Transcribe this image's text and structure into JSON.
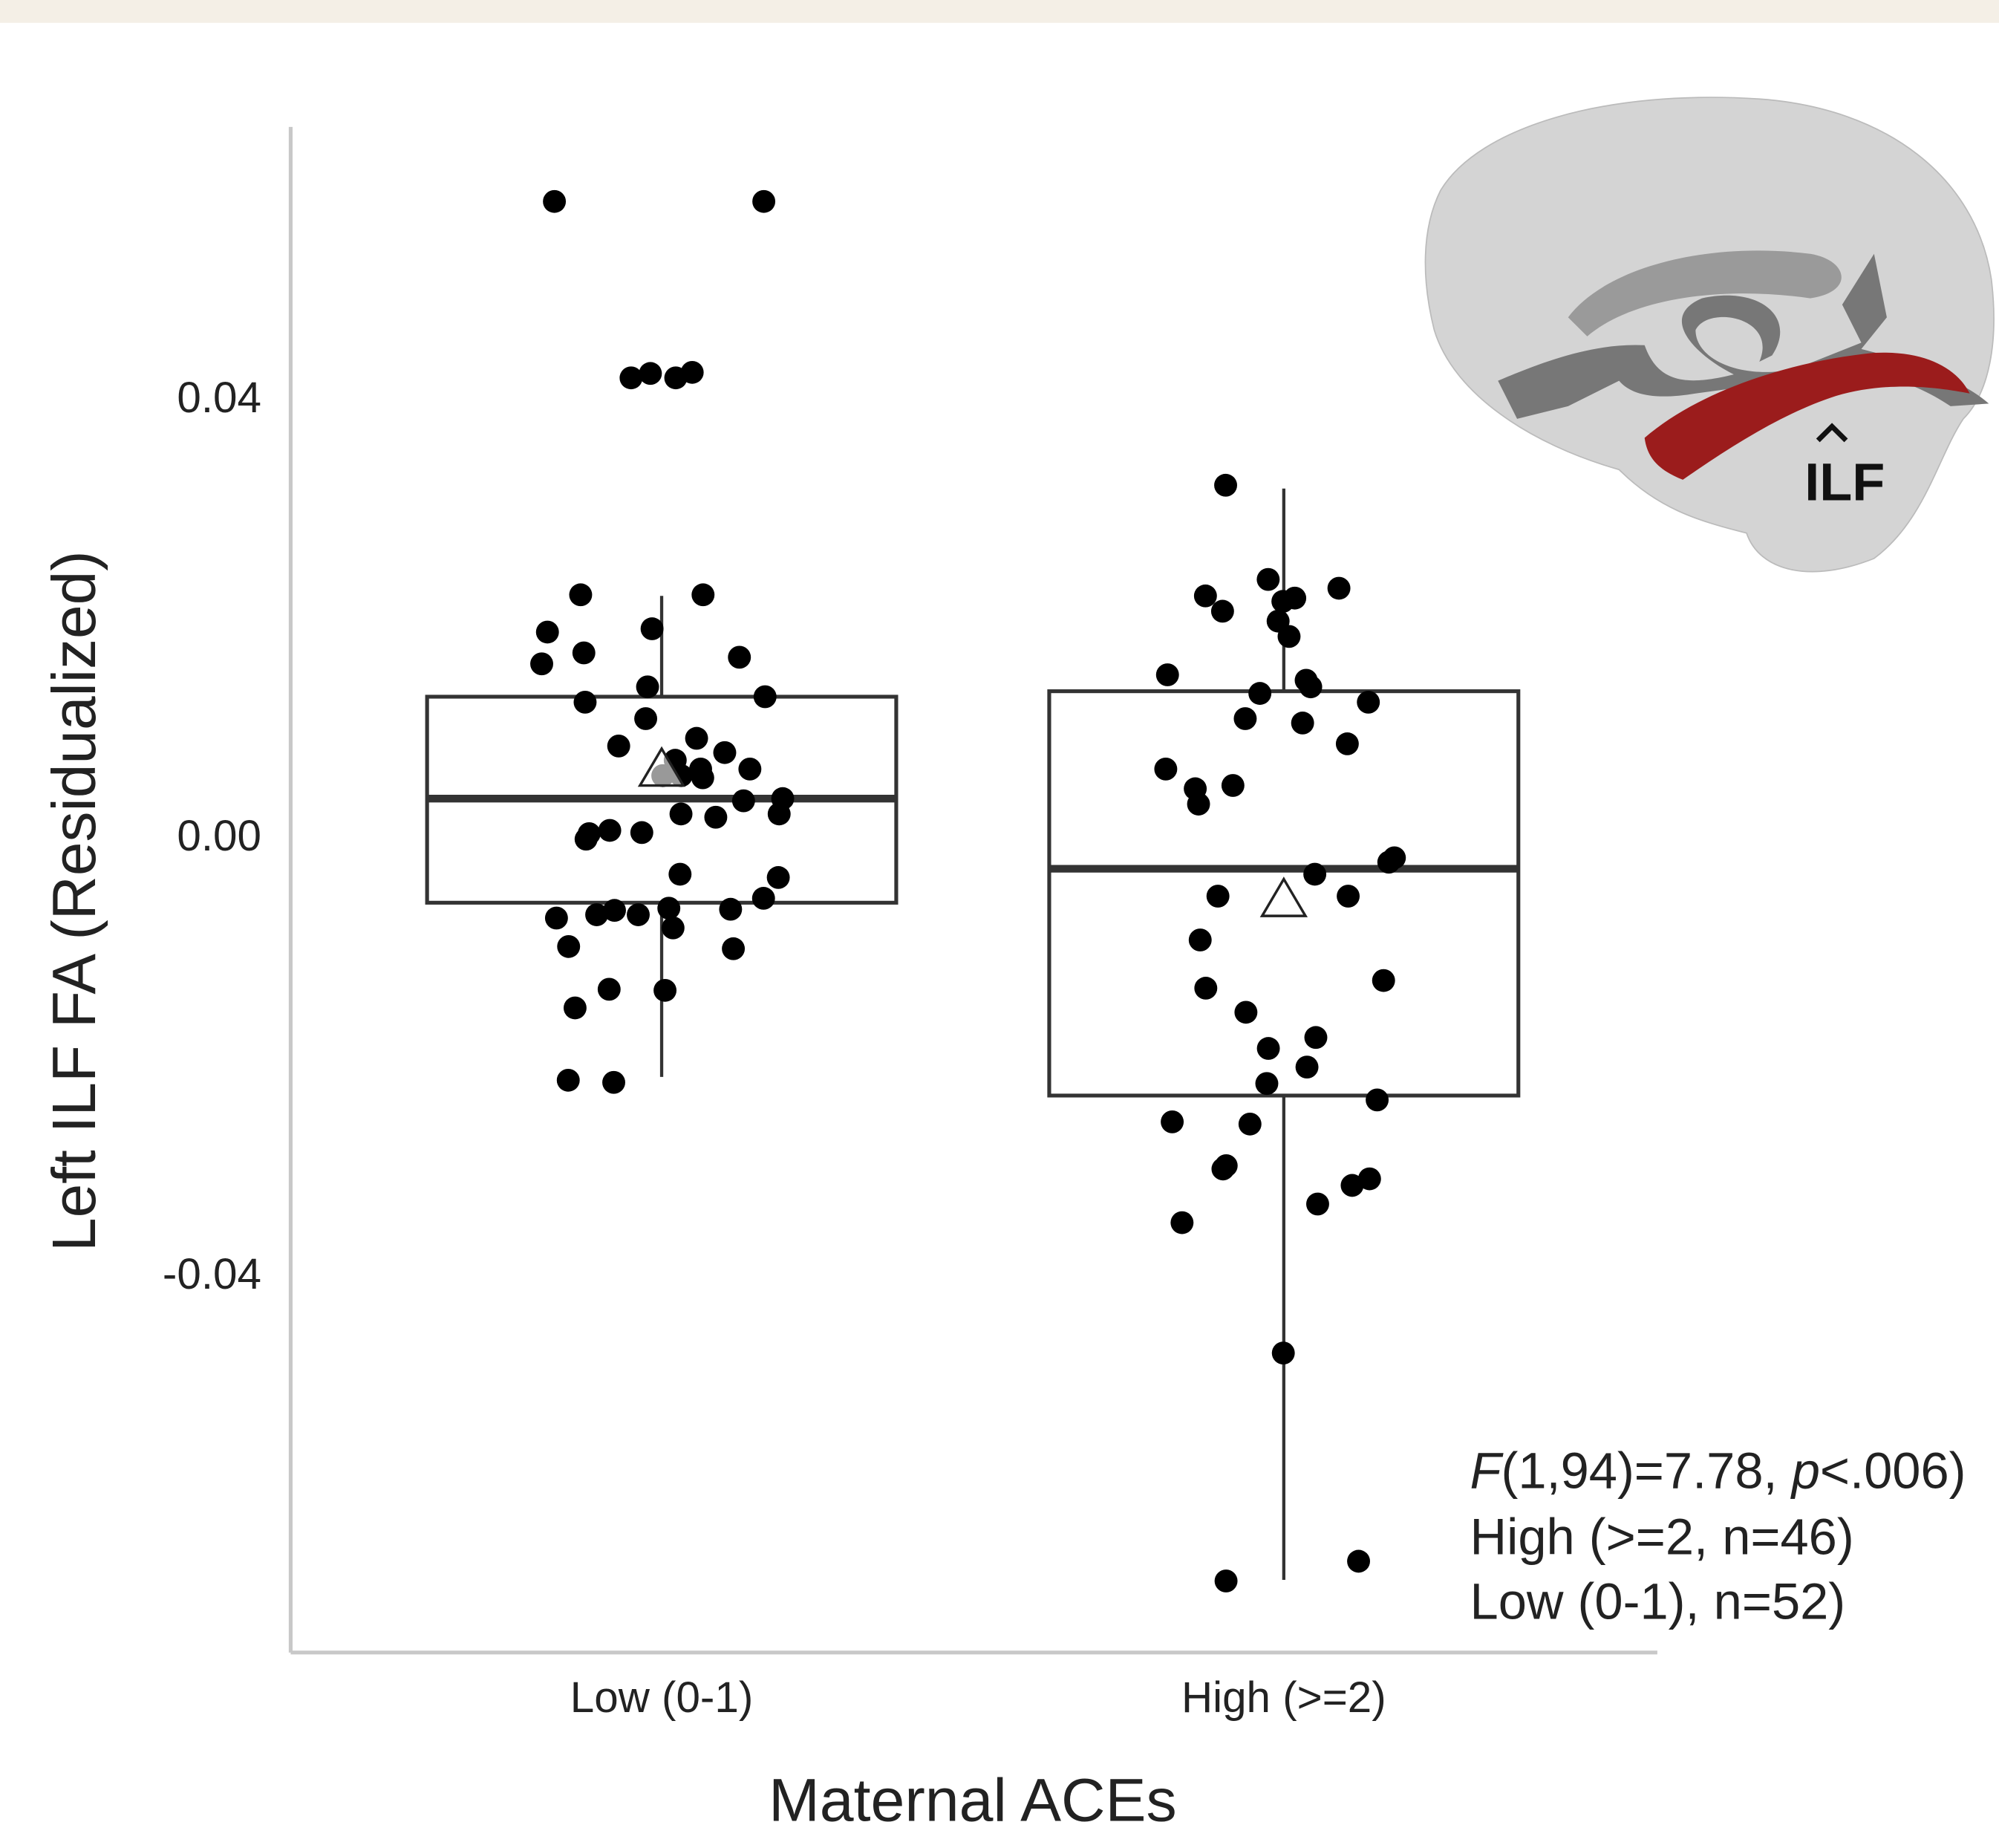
{
  "chart_data": {
    "type": "box",
    "y_label": "Left ILF FA (Residualized)",
    "x_label": "Maternal ACEs",
    "categories": [
      "Low (0-1)",
      "High (>=2)"
    ],
    "ylim": [
      -0.074,
      0.065
    ],
    "yticks": [
      0.04,
      {
        "value": 0,
        "label": "0.00"
      },
      -0.04
    ],
    "grid": false,
    "box_color": "#333333",
    "point_color": "#000000",
    "boxes": [
      {
        "whisker_low": -0.0217,
        "q1": -0.0058,
        "median": 0.0037,
        "q3": 0.013,
        "whisker_high": 0.0222,
        "mean": 0.0064
      },
      {
        "whisker_low": -0.0676,
        "q1": -0.0234,
        "median": -0.0027,
        "q3": 0.0135,
        "whisker_high": 0.032,
        "mean": -0.0055
      }
    ],
    "points": [
      [
        0.0582,
        0.0582,
        0.0421,
        0.0421,
        0.0425,
        0.0426,
        0.0223,
        0.0223,
        0.0192,
        0.0189,
        0.017,
        0.0166,
        0.016,
        0.0125,
        0.0139,
        0.013,
        0.011,
        0.0092,
        0.0085,
        0.0079,
        0.0072,
        0.0064,
        0.0058,
        0.0064,
        0.0056,
        0.0058,
        0.0037,
        0.0035,
        0.0023,
        0.0023,
        0.002,
        0.0008,
        0.0006,
        0.0005,
        -0.0032,
        -0.0035,
        -0.0054,
        -0.0063,
        -0.0069,
        -0.0069,
        -0.0072,
        -0.0081,
        -0.0064,
        -0.0065,
        -0.01,
        -0.0137,
        -0.0138,
        -0.0154,
        -0.022,
        -0.0222,
        -0.0098,
        0
      ],
      [
        0.0323,
        0.0237,
        0.022,
        0.0229,
        0.0222,
        0.0208,
        0.0217,
        0.0199,
        0.0185,
        0.015,
        0.0145,
        0.0139,
        0.0133,
        0.0125,
        0.011,
        0.0106,
        0.0087,
        0.0064,
        0.0049,
        0.0046,
        0.0032,
        -0.0017,
        -0.0032,
        -0.0021,
        -0.0052,
        -0.0052,
        -0.0092,
        -0.0129,
        -0.0136,
        -0.0158,
        -0.0191,
        -0.0181,
        -0.0208,
        -0.0223,
        -0.0238,
        -0.026,
        -0.0258,
        -0.0301,
        -0.0298,
        -0.0316,
        -0.031,
        -0.0333,
        -0.035,
        -0.0469,
        -0.0659,
        -0.0677
      ]
    ],
    "annotation_parts": [
      "F",
      "(1,94)=7.78, ",
      "p",
      "<.006)"
    ],
    "annotation_lines": [
      "High (>=2, n=46)",
      "Low (0-1), n=52)"
    ],
    "inset_label": "ILF"
  }
}
